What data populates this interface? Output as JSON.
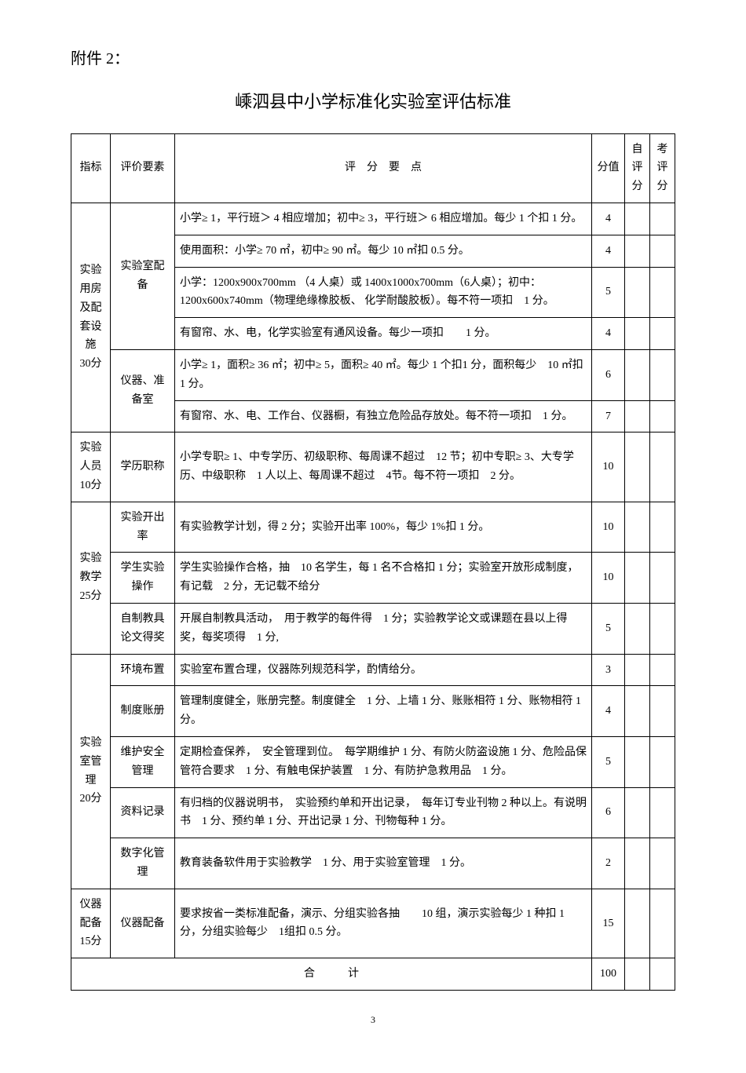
{
  "attachment_label": "附件 2：",
  "title": "嵊泗县中小学标准化实验室评估标准",
  "headers": {
    "indicator": "指标",
    "element": "评价要素",
    "criteria": "评　分　要　点",
    "score": "分值",
    "self_score": "自评分",
    "assess_score": "考评分"
  },
  "rows": [
    {
      "indicator": "实验用房及配套设施",
      "indicator_score": "30分",
      "indicator_rowspan": 6,
      "element": "实验室配备",
      "element_rowspan": 4,
      "criteria": "小学≥ 1，平行班＞ 4 相应增加；初中≥ 3，平行班＞ 6 相应增加。每少 1 个扣 1 分。",
      "score": "4"
    },
    {
      "criteria": "使用面积：小学≥ 70 ㎡，初中≥ 90 ㎡。每少 10 ㎡扣 0.5 分。",
      "score": "4"
    },
    {
      "criteria": "小学：1200x900x700mm （4 人桌）或 1400x1000x700mm（6人桌）；初中：1200x600x740mm（物理绝缘橡胶板、 化学耐酸胶板）。每不符一项扣　1 分。",
      "score": "5"
    },
    {
      "criteria": "有窗帘、水、电，化学实验室有通风设备。每少一项扣　　1 分。",
      "score": "4"
    },
    {
      "element": "仪器、准备室",
      "element_rowspan": 2,
      "criteria": "小学≥ 1，面积≥ 36 ㎡；初中≥ 5，面积≥ 40 ㎡。每少 1 个扣1 分，面积每少　10 ㎡扣 1 分。",
      "score": "6"
    },
    {
      "criteria": "有窗帘、水、电、工作台、仪器橱，有独立危险品存放处。每不符一项扣　1 分。",
      "score": "7"
    },
    {
      "indicator": "实验人员",
      "indicator_score": "10分",
      "indicator_rowspan": 1,
      "element": "学历职称",
      "element_rowspan": 1,
      "criteria": "小学专职≥ 1、中专学历、初级职称、每周课不超过　12 节；初中专职≥ 3、大专学历、中级职称　1 人以上、每周课不超过　4节。每不符一项扣　2 分。",
      "score": "10"
    },
    {
      "indicator": "实验教学",
      "indicator_score": "25分",
      "indicator_rowspan": 3,
      "element": "实验开出率",
      "element_rowspan": 1,
      "criteria": "有实验教学计划，得 2 分；实验开出率 100%，每少 1%扣 1 分。",
      "score": "10"
    },
    {
      "element": "学生实验操作",
      "element_rowspan": 1,
      "criteria": "学生实验操作合格，抽　10 名学生，每 1 名不合格扣 1 分；实验室开放形成制度，有记载　2 分，无记载不给分",
      "score": "10"
    },
    {
      "element": "自制教具论文得奖",
      "element_rowspan": 1,
      "criteria": "开展自制教具活动，　用于教学的每件得　1 分；实验教学论文或课题在县以上得奖，每奖项得　1 分,",
      "score": "5"
    },
    {
      "indicator": "实验室管理",
      "indicator_score": "20分",
      "indicator_rowspan": 5,
      "element": "环境布置",
      "element_rowspan": 1,
      "criteria": "实验室布置合理，仪器陈列规范科学，酌情给分。",
      "score": "3"
    },
    {
      "element": "制度账册",
      "element_rowspan": 1,
      "criteria": "管理制度健全，账册完整。制度健全　1 分、上墙 1 分、账账相符 1 分、账物相符 1 分。",
      "score": "4"
    },
    {
      "element": "维护安全管理",
      "element_rowspan": 1,
      "criteria": "定期检查保养，　安全管理到位。　每学期维护 1 分、有防火防盗设施 1 分、危险品保管符合要求　1 分、有触电保护装置　1 分、有防护急救用品　1 分。",
      "score": "5"
    },
    {
      "element": "资料记录",
      "element_rowspan": 1,
      "criteria": "有归档的仪器说明书，　实验预约单和开出记录，　每年订专业刊物 2 种以上。有说明书　1 分、预约单 1 分、开出记录 1 分、刊物每种 1 分。",
      "score": "6"
    },
    {
      "element": "数字化管理",
      "element_rowspan": 1,
      "criteria": "教育装备软件用于实验教学　1 分、用于实验室管理　1 分。",
      "score": "2"
    },
    {
      "indicator": "仪器配备",
      "indicator_score": "15分",
      "indicator_rowspan": 1,
      "element": "仪器配备",
      "element_rowspan": 1,
      "criteria": "要求按省一类标准配备，演示、分组实验各抽　　10 组，演示实验每少 1 种扣 1 分，分组实验每少　1组扣 0.5 分。",
      "score": "15"
    }
  ],
  "total_label": "合　　　计",
  "total_score": "100",
  "page_number": "3"
}
